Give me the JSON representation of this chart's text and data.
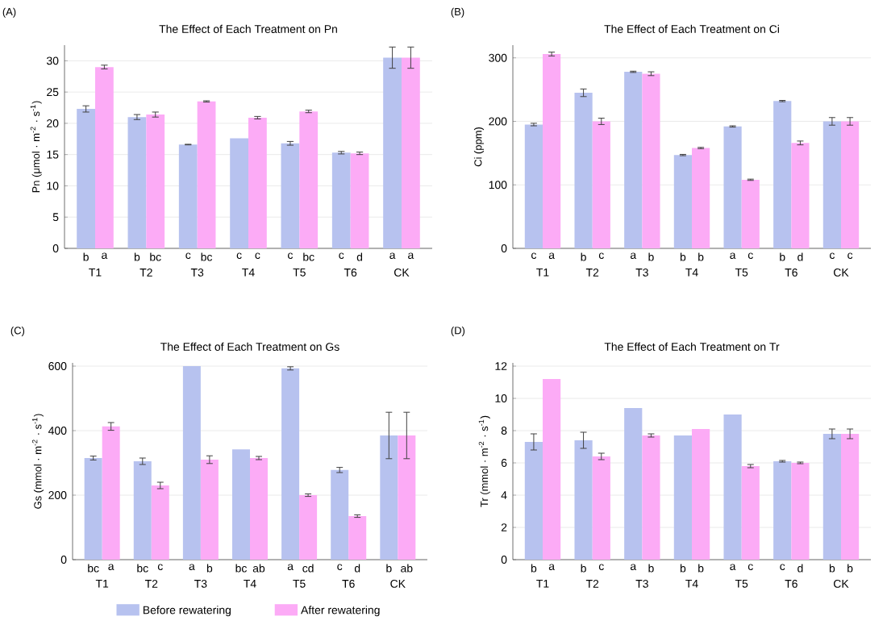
{
  "chart_data": [
    {
      "type": "bar",
      "title": "The Effect of Each Treatment on Pn",
      "ylabel": "Pn (μmol · m$^{-2}$ · s$^{-1}$)",
      "annotations": [
        "(A)"
      ],
      "categories": [
        "T1",
        "T2",
        "T3",
        "T4",
        "T5",
        "T6",
        "CK"
      ],
      "ylim": [
        0,
        32.5
      ],
      "yticks": [
        0,
        5,
        10,
        15,
        20,
        25,
        30
      ],
      "grid": "y",
      "series": [
        {
          "color": "#b7c2ef",
          "values": [
            22.3,
            21.0,
            16.6,
            17.6,
            16.8,
            15.3,
            30.5
          ],
          "errors": [
            0.5,
            0.4,
            0.05,
            null,
            0.3,
            0.2,
            1.7
          ],
          "value_labels": [
            "b",
            "b",
            "c",
            "c",
            "c",
            "c",
            "a"
          ]
        },
        {
          "color": "#fcabf6",
          "values": [
            29.0,
            21.4,
            23.5,
            20.9,
            21.9,
            15.2,
            30.5
          ],
          "errors": [
            0.3,
            0.4,
            0.1,
            0.2,
            0.2,
            0.2,
            1.7
          ],
          "value_labels": [
            "a",
            "bc",
            "bc",
            "c",
            "bc",
            "d",
            "a"
          ]
        }
      ]
    },
    {
      "type": "bar",
      "title": "The Effect of Each Treatment on Ci",
      "ylabel": "Ci (ppm)",
      "annotations": [
        "(B)"
      ],
      "categories": [
        "T1",
        "T2",
        "T3",
        "T4",
        "T5",
        "T6",
        "CK"
      ],
      "ylim": [
        0,
        320
      ],
      "yticks": [
        0,
        100,
        200,
        300
      ],
      "grid": "y",
      "series": [
        {
          "color": "#b7c2ef",
          "values": [
            195,
            245,
            278,
            147,
            192,
            232,
            200
          ],
          "errors": [
            2,
            6,
            1,
            1,
            1,
            1,
            6
          ],
          "value_labels": [
            "c",
            "b",
            "a",
            "b",
            "a",
            "b",
            "c"
          ]
        },
        {
          "color": "#fcabf6",
          "values": [
            306,
            200,
            275,
            158,
            108,
            166,
            200
          ],
          "errors": [
            3,
            5,
            3,
            1,
            1,
            3,
            6
          ],
          "value_labels": [
            "a",
            "c",
            "b",
            "b",
            "c",
            "d",
            "c"
          ]
        }
      ]
    },
    {
      "type": "bar",
      "title": "The Effect of Each Treatment on Gs",
      "ylabel": "Gs (mmol · m$^{-2}$ · s$^{-1}$)",
      "annotations": [
        "(C)"
      ],
      "categories": [
        "T1",
        "T2",
        "T3",
        "T4",
        "T5",
        "T6",
        "CK"
      ],
      "ylim": [
        0,
        610
      ],
      "yticks": [
        0,
        200,
        400,
        600
      ],
      "grid": "y",
      "legend": "bottom",
      "series": [
        {
          "name": "Before rewatering",
          "color": "#b7c2ef",
          "values": [
            315,
            305,
            600,
            342,
            593,
            278,
            385
          ],
          "errors": [
            6,
            10,
            null,
            null,
            5,
            8,
            72
          ],
          "value_labels": [
            "bc",
            "bc",
            "a",
            "bc",
            "a",
            "c",
            "b"
          ]
        },
        {
          "name": "After rewatering",
          "color": "#fcabf6",
          "values": [
            413,
            230,
            310,
            315,
            200,
            135,
            385
          ],
          "errors": [
            12,
            10,
            12,
            5,
            4,
            4,
            72
          ],
          "value_labels": [
            "a",
            "c",
            "b",
            "ab",
            "cd",
            "d",
            "ab"
          ]
        }
      ]
    },
    {
      "type": "bar",
      "title": "The Effect of Each Treatment on Tr",
      "ylabel": "Tr (mmol · m$^{-2}$ · s$^{-1}$)",
      "annotations": [
        "(D)"
      ],
      "categories": [
        "T1",
        "T2",
        "T3",
        "T4",
        "T5",
        "T6",
        "CK"
      ],
      "ylim": [
        0,
        12.2
      ],
      "yticks": [
        0,
        2,
        4,
        6,
        8,
        10,
        12
      ],
      "grid": "y",
      "series": [
        {
          "color": "#b7c2ef",
          "values": [
            7.3,
            7.4,
            9.4,
            7.7,
            9.0,
            6.1,
            7.8
          ],
          "errors": [
            0.5,
            0.5,
            null,
            null,
            null,
            0.05,
            0.3
          ],
          "value_labels": [
            "b",
            "b",
            "a",
            "b",
            "a",
            "c",
            "b"
          ]
        },
        {
          "color": "#fcabf6",
          "values": [
            11.2,
            6.4,
            7.7,
            8.1,
            5.8,
            6.0,
            7.8
          ],
          "errors": [
            null,
            0.2,
            0.1,
            null,
            0.1,
            0.05,
            0.3
          ],
          "value_labels": [
            "a",
            "c",
            "b",
            "b",
            "c",
            "d",
            "b"
          ]
        }
      ]
    }
  ]
}
